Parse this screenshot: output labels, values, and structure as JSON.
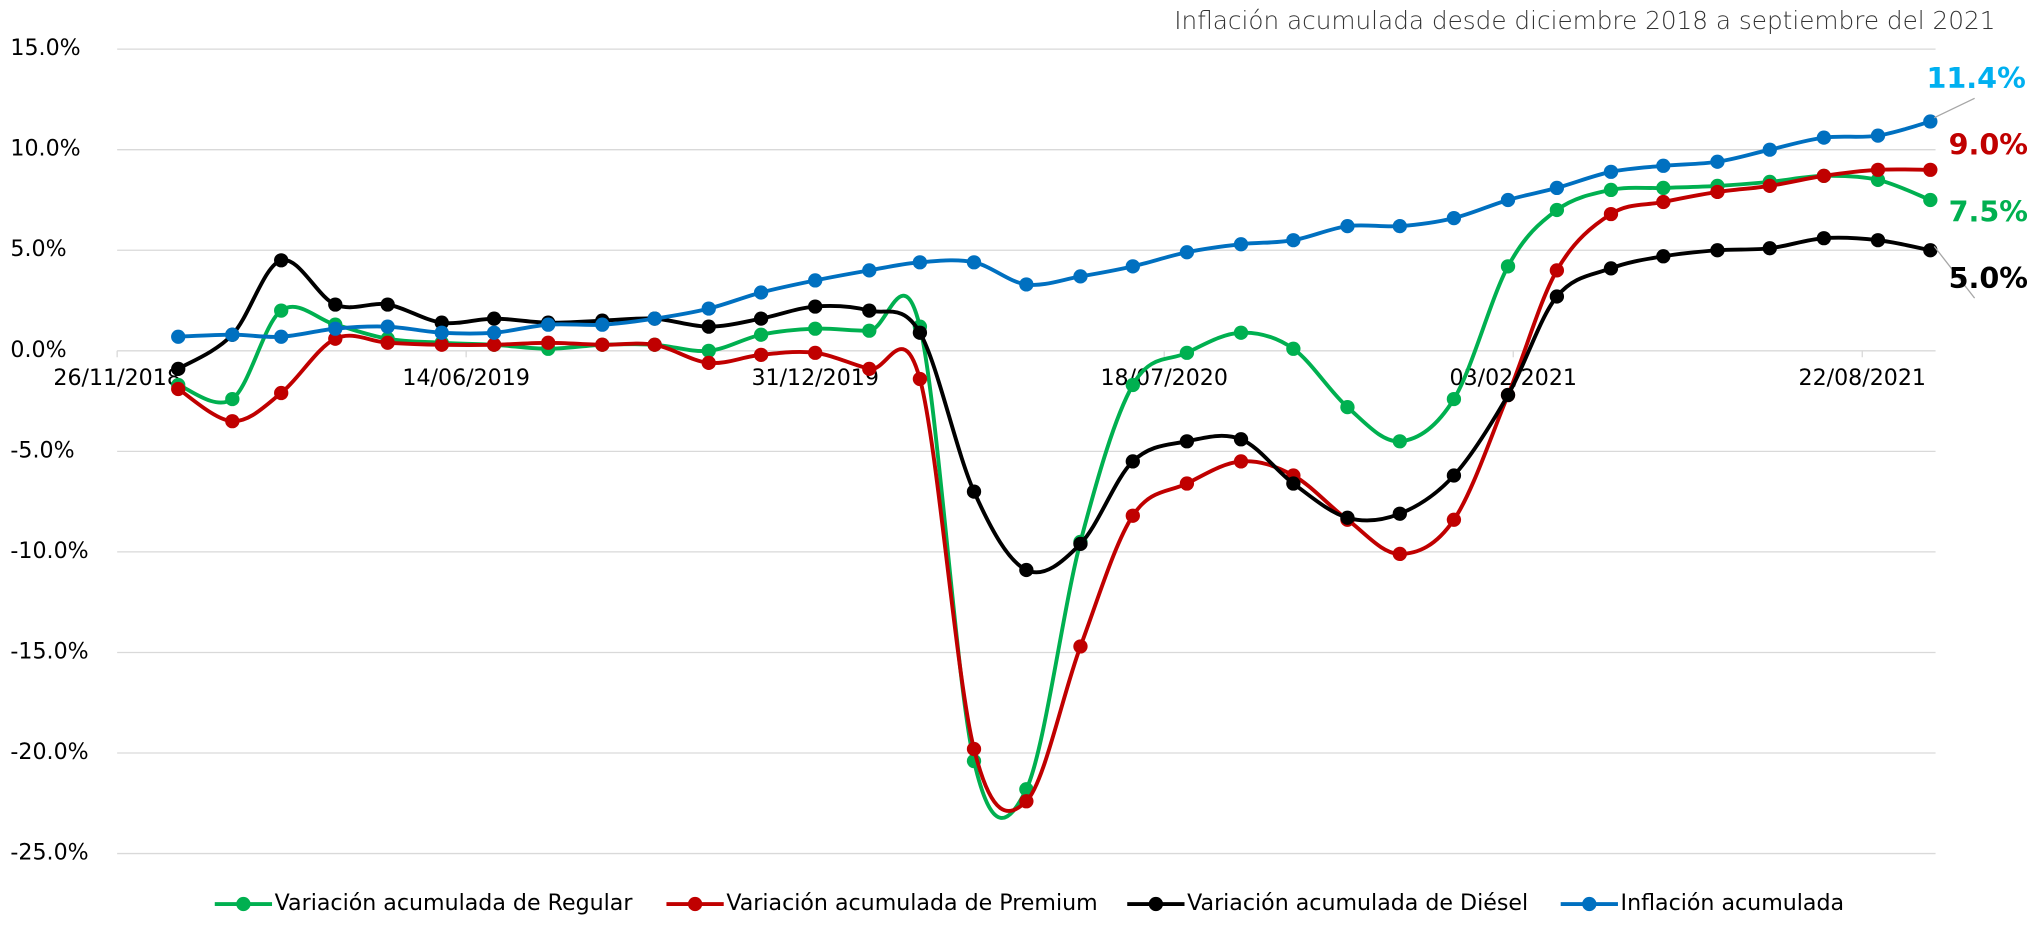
{
  "chart_data": {
    "type": "line",
    "title": "Inflación acumulada desde diciembre 2018 a septiembre del 2021",
    "x": [
      "2018-12-31",
      "2019-01-31",
      "2019-02-28",
      "2019-03-31",
      "2019-04-30",
      "2019-05-31",
      "2019-06-30",
      "2019-07-31",
      "2019-08-31",
      "2019-09-30",
      "2019-10-31",
      "2019-11-30",
      "2019-12-31",
      "2020-01-31",
      "2020-02-29",
      "2020-03-31",
      "2020-04-30",
      "2020-05-31",
      "2020-06-30",
      "2020-07-31",
      "2020-08-31",
      "2020-09-30",
      "2020-10-31",
      "2020-11-30",
      "2020-12-31",
      "2021-01-31",
      "2021-02-28",
      "2021-03-31",
      "2021-04-30",
      "2021-05-31",
      "2021-06-30",
      "2021-07-31",
      "2021-08-31",
      "2021-09-30"
    ],
    "xlim": [
      "2018-11-26",
      "2021-10-03"
    ],
    "xticks": [
      {
        "value": "2018-11-26",
        "label": "26/11/2018"
      },
      {
        "value": "2019-06-14",
        "label": "14/06/2019"
      },
      {
        "value": "2019-12-31",
        "label": "31/12/2019"
      },
      {
        "value": "2020-07-18",
        "label": "18/07/2020"
      },
      {
        "value": "2021-02-03",
        "label": "03/02/2021"
      },
      {
        "value": "2021-08-22",
        "label": "22/08/2021"
      }
    ],
    "ylim": [
      -25,
      15
    ],
    "yticks": [
      {
        "value": 15,
        "label": "15.0%"
      },
      {
        "value": 10,
        "label": "10.0%"
      },
      {
        "value": 5,
        "label": "5.0%"
      },
      {
        "value": 0,
        "label": "0.0%"
      },
      {
        "value": -5,
        "label": "-5.0%"
      },
      {
        "value": -10,
        "label": "-10.0%"
      },
      {
        "value": -15,
        "label": "-15.0%"
      },
      {
        "value": -20,
        "label": "-20.0%"
      },
      {
        "value": -25,
        "label": "-25.0%"
      }
    ],
    "grid": true,
    "legend": "bottom",
    "series": [
      {
        "name": "Variación acumulada de Regular",
        "color": "#00b050",
        "last_label": "7.5%",
        "label_color": "#00b050",
        "values": [
          -1.7,
          -2.4,
          2.0,
          1.3,
          0.6,
          0.4,
          0.3,
          0.1,
          0.3,
          0.3,
          0.0,
          0.8,
          1.1,
          1.0,
          1.2,
          -20.4,
          -21.8,
          -9.5,
          -1.7,
          -0.1,
          0.9,
          0.1,
          -2.8,
          -4.5,
          -2.4,
          4.2,
          7.0,
          8.0,
          8.1,
          8.2,
          8.4,
          8.7,
          8.5,
          7.5
        ]
      },
      {
        "name": "Variación acumulada de Premium",
        "color": "#c00000",
        "last_label": "9.0%",
        "label_color": "#c00000",
        "values": [
          -1.9,
          -3.5,
          -2.1,
          0.6,
          0.4,
          0.3,
          0.3,
          0.4,
          0.3,
          0.3,
          -0.6,
          -0.2,
          -0.1,
          -0.9,
          -1.4,
          -19.8,
          -22.4,
          -14.7,
          -8.2,
          -6.6,
          -5.5,
          -6.2,
          -8.4,
          -10.1,
          -8.4,
          -2.2,
          4.0,
          6.8,
          7.4,
          7.9,
          8.2,
          8.7,
          9.0,
          9.0
        ]
      },
      {
        "name": "Variación acumulada de Diésel",
        "color": "#000000",
        "last_label": "5.0%",
        "label_color": "#000000",
        "values": [
          -0.9,
          0.8,
          4.5,
          2.3,
          2.3,
          1.4,
          1.6,
          1.4,
          1.5,
          1.6,
          1.2,
          1.6,
          2.2,
          2.0,
          0.9,
          -7.0,
          -10.9,
          -9.6,
          -5.5,
          -4.5,
          -4.4,
          -6.6,
          -8.3,
          -8.1,
          -6.2,
          -2.2,
          2.7,
          4.1,
          4.7,
          5.0,
          5.1,
          5.6,
          5.5,
          5.0
        ]
      },
      {
        "name": "Inflación acumulada",
        "color": "#0070c0",
        "last_label": "11.4%",
        "label_color": "#00b0f0",
        "values": [
          0.7,
          0.8,
          0.7,
          1.1,
          1.2,
          0.9,
          0.9,
          1.3,
          1.3,
          1.6,
          2.1,
          2.9,
          3.5,
          4.0,
          4.4,
          4.4,
          3.3,
          3.7,
          4.2,
          4.9,
          5.3,
          5.5,
          6.2,
          6.2,
          6.6,
          7.5,
          8.1,
          8.9,
          9.2,
          9.4,
          10.0,
          10.6,
          10.7,
          11.4
        ]
      }
    ]
  }
}
